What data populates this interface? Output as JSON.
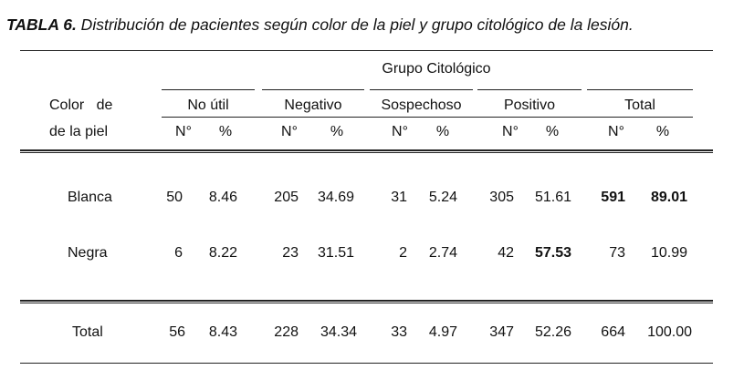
{
  "caption": {
    "label": "TABLA 6.",
    "text": " Distribución de pacientes según color de la piel y grupo citológico de la lesión."
  },
  "header": {
    "group_title": "Grupo Citológico",
    "row_header_line1": "Color   de",
    "row_header_line2": "de la piel",
    "groups": [
      "No útil",
      "Negativo",
      "Sospechoso",
      "Positivo",
      "Total"
    ],
    "n_label": "N°",
    "pct_label": "%"
  },
  "rows": [
    {
      "label": "Blanca",
      "values": [
        "50",
        "8.46",
        "205",
        "34.69",
        "31",
        "5.24",
        "305",
        "51.61",
        "591",
        "89.01"
      ],
      "bold": [
        false,
        false,
        false,
        false,
        false,
        false,
        false,
        false,
        true,
        true
      ]
    },
    {
      "label": "Negra",
      "values": [
        "6",
        "8.22",
        "23",
        "31.51",
        "2",
        "2.74",
        "42",
        "57.53",
        "73",
        "10.99"
      ],
      "bold": [
        false,
        false,
        false,
        false,
        false,
        false,
        false,
        true,
        false,
        false
      ]
    }
  ],
  "total_row": {
    "label": "Total",
    "values": [
      "56",
      "8.43",
      "228",
      "34.34",
      "33",
      "4.97",
      "347",
      "52.26",
      "664",
      "100.00"
    ]
  }
}
